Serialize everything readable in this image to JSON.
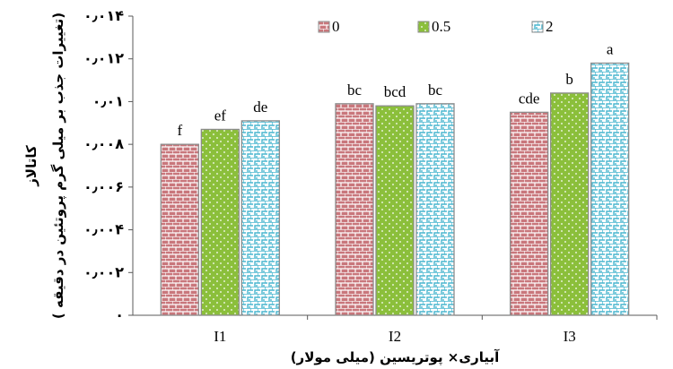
{
  "chart_data": {
    "type": "bar",
    "title": "",
    "categories": [
      "I1",
      "I2",
      "I3"
    ],
    "series": [
      {
        "name": "0",
        "values": [
          0.008,
          0.0099,
          0.0095
        ],
        "letters": [
          "f",
          "bc",
          "cde"
        ],
        "color": "#c9777c",
        "pattern": "pattern-bricks"
      },
      {
        "name": "0.5",
        "values": [
          0.0087,
          0.0098,
          0.0104
        ],
        "letters": [
          "ef",
          "bcd",
          "b"
        ],
        "color": "#8bbf3b",
        "pattern": "pattern-dots"
      },
      {
        "name": "2",
        "values": [
          0.0091,
          0.0099,
          0.0118
        ],
        "letters": [
          "de",
          "bc",
          "a"
        ],
        "color": "#49b6cf",
        "pattern": "pattern-weave"
      }
    ],
    "y_ticks": [
      "۰",
      "۰٫۰۰۲",
      "۰٫۰۰۴",
      "۰٫۰۰۶",
      "۰٫۰۰۸",
      "۰٫۰۱",
      "۰٫۰۱۲",
      "۰٫۰۱۴"
    ],
    "y_tick_values": [
      0,
      0.002,
      0.004,
      0.006,
      0.008,
      0.01,
      0.012,
      0.014
    ],
    "ylim": [
      0,
      0.014
    ],
    "xlabel": "آبیاری× پوتریسین (میلی مولار)",
    "ylabel_lines": [
      "کاتالاز",
      "( تغییرات جذب بر میلی گرم پروتئین در دقیقه)"
    ],
    "legend_position": "top-right",
    "grid": false
  }
}
